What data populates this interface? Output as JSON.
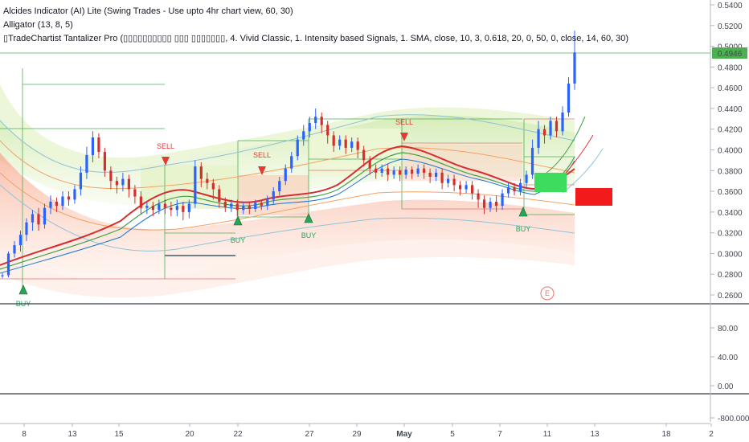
{
  "legend": {
    "line1": "Alcides Indicator (AI) Lite (Swing Trades - Use upto 4hr chart view, 60, 30)",
    "line2": "Alligator (13, 8, 5)",
    "line3": "▯TradeChartist Tantalizer Pro (▯▯▯▯▯▯▯▯▯▯ ▯▯▯ ▯▯▯▯▯▯▯, 4. Vivid Classic, 1. Intensity based Signals, 1. SMA, close, 10, 3, 0.618, 20, 0, 50, 0, close, 14, 60, 30)"
  },
  "price_axis": {
    "ticks": [
      "0.5400",
      "0.5200",
      "0.5000",
      "0.4800",
      "0.4600",
      "0.4400",
      "0.4200",
      "0.4000",
      "0.3800",
      "0.3600",
      "0.3400",
      "0.3200",
      "0.3000",
      "0.2800",
      "0.2600"
    ],
    "last_price": "0.4946"
  },
  "osc_axis": {
    "ticks": [
      "80.00",
      "40.00",
      "0.00"
    ]
  },
  "vol_axis": {
    "ticks": [
      "-800.000"
    ]
  },
  "time_axis": {
    "ticks": [
      "8",
      "13",
      "15",
      "20",
      "22",
      "27",
      "29",
      "May",
      "5",
      "7",
      "11",
      "13",
      "18",
      "2"
    ]
  },
  "colors": {
    "up": "#2962ff",
    "down": "#d32f2f",
    "alligator": "#e53935",
    "buy": "#26a65b",
    "sell": "#e53935",
    "level": "#4caf50",
    "last": "#4caf50"
  },
  "signals": [
    {
      "type": "SELL",
      "text": "SELL"
    },
    {
      "type": "SELL",
      "text": "SELL"
    },
    {
      "type": "SELL",
      "text": "SELL"
    },
    {
      "type": "BUY",
      "text": "BUY"
    },
    {
      "type": "BUY",
      "text": "BUY"
    },
    {
      "type": "BUY",
      "text": "BUY"
    },
    {
      "type": "BUY",
      "text": "BUY"
    }
  ],
  "event_marker": "E",
  "chart_data": {
    "type": "candlestick",
    "ylim": [
      0.26,
      0.54
    ],
    "x_ticks": [
      "8",
      "13",
      "15",
      "20",
      "22",
      "27",
      "29",
      "May",
      "5",
      "7",
      "11",
      "13",
      "18",
      "2"
    ],
    "candles": [
      [
        0.278,
        0.279,
        0.276,
        0.281
      ],
      [
        0.279,
        0.3,
        0.277,
        0.302
      ],
      [
        0.3,
        0.308,
        0.296,
        0.312
      ],
      [
        0.308,
        0.318,
        0.302,
        0.322
      ],
      [
        0.318,
        0.33,
        0.312,
        0.334
      ],
      [
        0.33,
        0.338,
        0.322,
        0.342
      ],
      [
        0.338,
        0.328,
        0.322,
        0.344
      ],
      [
        0.328,
        0.344,
        0.324,
        0.348
      ],
      [
        0.344,
        0.35,
        0.338,
        0.356
      ],
      [
        0.35,
        0.346,
        0.34,
        0.354
      ],
      [
        0.346,
        0.355,
        0.342,
        0.36
      ],
      [
        0.355,
        0.352,
        0.346,
        0.36
      ],
      [
        0.352,
        0.362,
        0.348,
        0.366
      ],
      [
        0.362,
        0.378,
        0.356,
        0.384
      ],
      [
        0.378,
        0.395,
        0.372,
        0.403
      ],
      [
        0.395,
        0.412,
        0.388,
        0.418
      ],
      [
        0.412,
        0.398,
        0.392,
        0.416
      ],
      [
        0.398,
        0.38,
        0.374,
        0.402
      ],
      [
        0.38,
        0.37,
        0.362,
        0.384
      ],
      [
        0.37,
        0.366,
        0.358,
        0.374
      ],
      [
        0.366,
        0.372,
        0.36,
        0.378
      ],
      [
        0.372,
        0.362,
        0.354,
        0.376
      ],
      [
        0.362,
        0.355,
        0.348,
        0.366
      ],
      [
        0.355,
        0.344,
        0.338,
        0.36
      ],
      [
        0.344,
        0.346,
        0.338,
        0.35
      ],
      [
        0.346,
        0.342,
        0.336,
        0.35
      ],
      [
        0.342,
        0.348,
        0.338,
        0.352
      ],
      [
        0.348,
        0.344,
        0.338,
        0.352
      ],
      [
        0.344,
        0.342,
        0.336,
        0.35
      ],
      [
        0.342,
        0.346,
        0.336,
        0.352
      ],
      [
        0.346,
        0.34,
        0.332,
        0.35
      ],
      [
        0.34,
        0.348,
        0.334,
        0.352
      ],
      [
        0.348,
        0.384,
        0.344,
        0.39
      ],
      [
        0.384,
        0.372,
        0.364,
        0.388
      ],
      [
        0.372,
        0.368,
        0.362,
        0.378
      ],
      [
        0.368,
        0.362,
        0.352,
        0.372
      ],
      [
        0.362,
        0.35,
        0.344,
        0.366
      ],
      [
        0.35,
        0.345,
        0.34,
        0.354
      ],
      [
        0.345,
        0.348,
        0.34,
        0.352
      ],
      [
        0.348,
        0.342,
        0.336,
        0.352
      ],
      [
        0.342,
        0.346,
        0.338,
        0.35
      ],
      [
        0.346,
        0.343,
        0.338,
        0.35
      ],
      [
        0.343,
        0.349,
        0.34,
        0.352
      ],
      [
        0.349,
        0.346,
        0.342,
        0.352
      ],
      [
        0.346,
        0.352,
        0.342,
        0.356
      ],
      [
        0.352,
        0.36,
        0.348,
        0.364
      ],
      [
        0.36,
        0.37,
        0.356,
        0.374
      ],
      [
        0.37,
        0.382,
        0.366,
        0.386
      ],
      [
        0.382,
        0.394,
        0.378,
        0.398
      ],
      [
        0.394,
        0.41,
        0.39,
        0.414
      ],
      [
        0.41,
        0.418,
        0.404,
        0.424
      ],
      [
        0.418,
        0.426,
        0.412,
        0.432
      ],
      [
        0.426,
        0.432,
        0.42,
        0.44
      ],
      [
        0.432,
        0.424,
        0.416,
        0.436
      ],
      [
        0.424,
        0.414,
        0.406,
        0.428
      ],
      [
        0.414,
        0.404,
        0.398,
        0.418
      ],
      [
        0.404,
        0.41,
        0.4,
        0.414
      ],
      [
        0.41,
        0.402,
        0.396,
        0.414
      ],
      [
        0.402,
        0.408,
        0.398,
        0.412
      ],
      [
        0.408,
        0.4,
        0.392,
        0.412
      ],
      [
        0.4,
        0.39,
        0.384,
        0.404
      ],
      [
        0.39,
        0.382,
        0.376,
        0.394
      ],
      [
        0.382,
        0.378,
        0.372,
        0.386
      ],
      [
        0.378,
        0.382,
        0.374,
        0.386
      ],
      [
        0.382,
        0.376,
        0.37,
        0.386
      ],
      [
        0.376,
        0.38,
        0.372,
        0.384
      ],
      [
        0.38,
        0.376,
        0.37,
        0.384
      ],
      [
        0.376,
        0.381,
        0.372,
        0.384
      ],
      [
        0.381,
        0.377,
        0.372,
        0.384
      ],
      [
        0.377,
        0.382,
        0.374,
        0.386
      ],
      [
        0.382,
        0.378,
        0.372,
        0.386
      ],
      [
        0.378,
        0.374,
        0.368,
        0.382
      ],
      [
        0.374,
        0.378,
        0.37,
        0.382
      ],
      [
        0.378,
        0.368,
        0.362,
        0.382
      ],
      [
        0.368,
        0.372,
        0.364,
        0.376
      ],
      [
        0.372,
        0.366,
        0.36,
        0.376
      ],
      [
        0.366,
        0.362,
        0.356,
        0.37
      ],
      [
        0.362,
        0.366,
        0.358,
        0.37
      ],
      [
        0.366,
        0.358,
        0.352,
        0.37
      ],
      [
        0.358,
        0.352,
        0.344,
        0.362
      ],
      [
        0.352,
        0.344,
        0.338,
        0.356
      ],
      [
        0.344,
        0.35,
        0.34,
        0.354
      ],
      [
        0.35,
        0.346,
        0.34,
        0.356
      ],
      [
        0.346,
        0.358,
        0.342,
        0.362
      ],
      [
        0.358,
        0.364,
        0.354,
        0.368
      ],
      [
        0.364,
        0.36,
        0.356,
        0.368
      ],
      [
        0.36,
        0.368,
        0.356,
        0.372
      ],
      [
        0.368,
        0.376,
        0.364,
        0.38
      ],
      [
        0.376,
        0.402,
        0.372,
        0.41
      ],
      [
        0.402,
        0.42,
        0.396,
        0.428
      ],
      [
        0.42,
        0.414,
        0.406,
        0.424
      ],
      [
        0.414,
        0.428,
        0.41,
        0.432
      ],
      [
        0.428,
        0.418,
        0.412,
        0.432
      ],
      [
        0.418,
        0.436,
        0.414,
        0.442
      ],
      [
        0.436,
        0.464,
        0.432,
        0.47
      ],
      [
        0.464,
        0.494,
        0.458,
        0.515
      ]
    ]
  }
}
